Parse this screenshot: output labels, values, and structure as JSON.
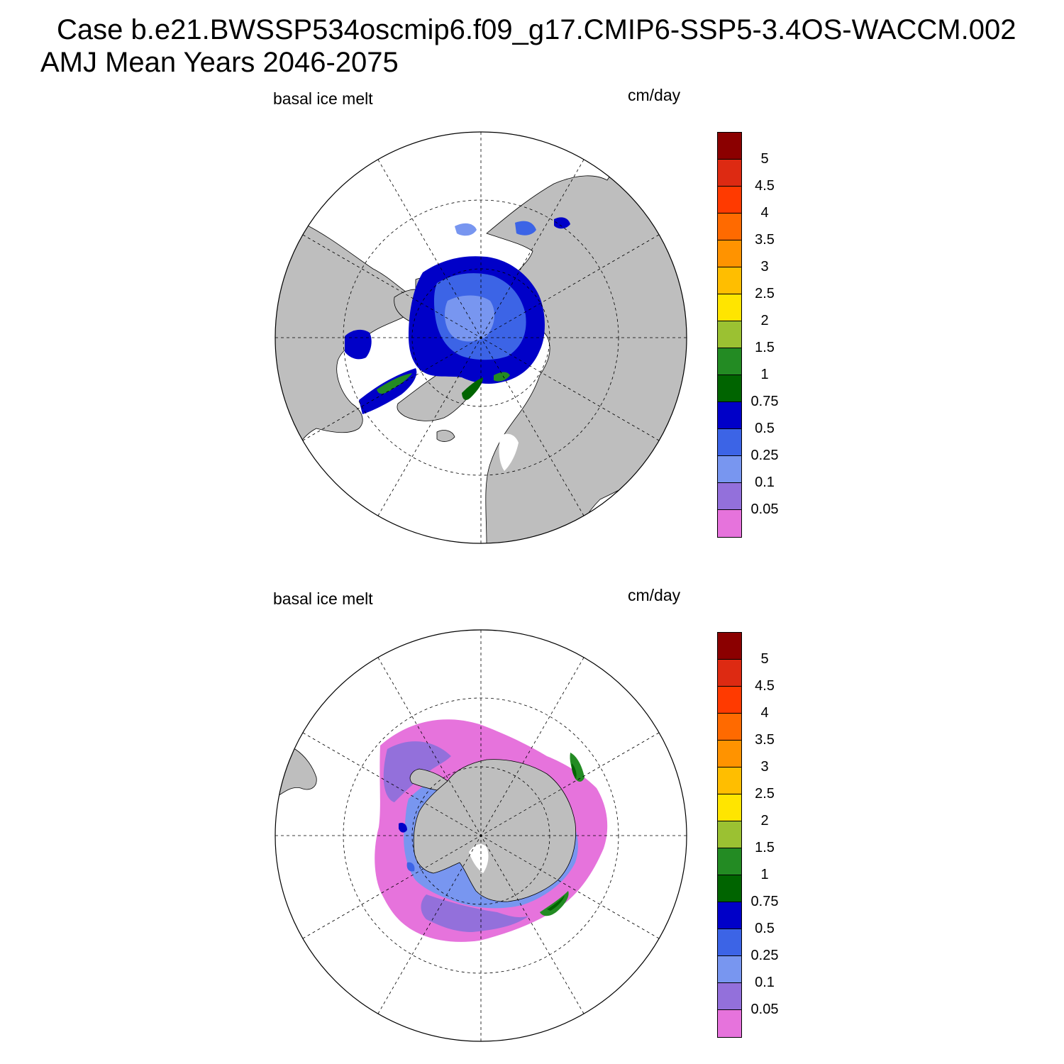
{
  "title": {
    "line1": "Case b.e21.BWSSP534oscmip6.f09_g17.CMIP6-SSP5-3.4OS-WACCM.002",
    "line2": "AMJ Mean   Years 2046-2075"
  },
  "panels": [
    {
      "hemisphere": "north",
      "variable_label": "basal ice melt",
      "units_label": "cm/day"
    },
    {
      "hemisphere": "south",
      "variable_label": "basal ice melt",
      "units_label": "cm/day"
    }
  ],
  "colorbar": {
    "levels": [
      "5",
      "4.5",
      "4",
      "3.5",
      "3",
      "2.5",
      "2",
      "1.5",
      "1",
      "0.75",
      "0.5",
      "0.25",
      "0.1",
      "0.05"
    ],
    "colors_top_to_bottom": [
      "#8b0000",
      "#dd2a12",
      "#ff3a00",
      "#ff6a00",
      "#ff9300",
      "#ffbe00",
      "#ffe500",
      "#9bc132",
      "#238b23",
      "#006400",
      "#0000c8",
      "#3c64e6",
      "#7896f0",
      "#9370db",
      "#e673dc"
    ]
  },
  "map_colors": {
    "land": "#bebebe",
    "coast": "#000000",
    "graticule": "#000000"
  }
}
